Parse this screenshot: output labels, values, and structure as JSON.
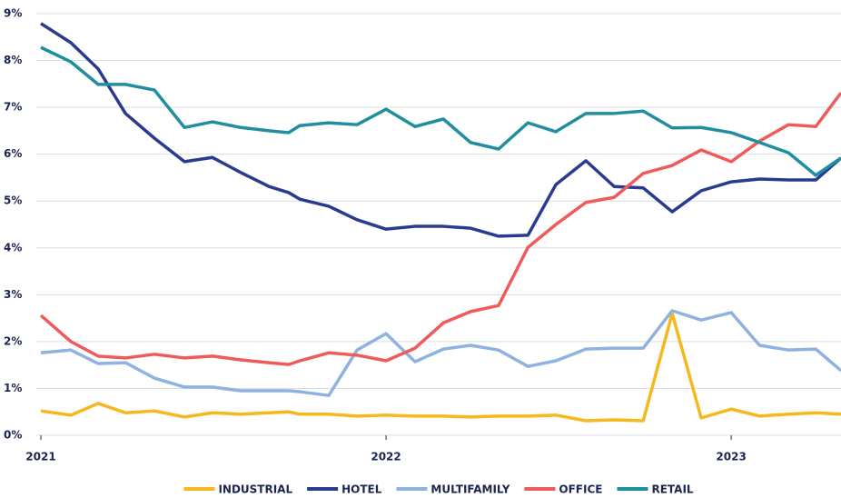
{
  "chart_data": {
    "type": "line",
    "x": [
      2021.0,
      2021.087,
      2021.166,
      2021.245,
      2021.329,
      2021.416,
      2021.497,
      2021.579,
      2021.661,
      2021.718,
      2021.75,
      2021.834,
      2021.916,
      2022.0,
      2022.084,
      2022.166,
      2022.245,
      2022.326,
      2022.411,
      2022.492,
      2022.579,
      2022.661,
      2022.745,
      2022.829,
      2022.913,
      2023.0,
      2023.082,
      2023.166,
      2023.245,
      2023.318
    ],
    "series": [
      {
        "name": "INDUSTRIAL",
        "color": "#f5b81e",
        "values": [
          0.52,
          0.43,
          0.68,
          0.48,
          0.52,
          0.39,
          0.48,
          0.45,
          0.48,
          0.5,
          0.45,
          0.45,
          0.41,
          0.43,
          0.41,
          0.41,
          0.39,
          0.41,
          0.41,
          0.43,
          0.31,
          0.33,
          0.31,
          2.6,
          0.37,
          0.56,
          0.41,
          0.45,
          0.48,
          0.45
        ]
      },
      {
        "name": "HOTEL",
        "color": "#2a3b8f",
        "values": [
          8.79,
          8.38,
          7.82,
          6.87,
          6.34,
          5.84,
          5.93,
          5.61,
          5.31,
          5.18,
          5.04,
          4.89,
          4.6,
          4.4,
          4.46,
          4.46,
          4.42,
          4.25,
          4.27,
          5.35,
          5.86,
          5.31,
          5.28,
          4.77,
          5.22,
          5.41,
          5.47,
          5.45,
          5.45,
          5.92
        ]
      },
      {
        "name": "MULTIFAMILY",
        "color": "#8fb3e0",
        "values": [
          1.76,
          1.82,
          1.53,
          1.55,
          1.22,
          1.03,
          1.03,
          0.95,
          0.95,
          0.95,
          0.93,
          0.85,
          1.82,
          2.17,
          1.57,
          1.84,
          1.92,
          1.82,
          1.47,
          1.59,
          1.84,
          1.86,
          1.86,
          2.66,
          2.46,
          2.62,
          1.92,
          1.82,
          1.84,
          1.38
        ]
      },
      {
        "name": "OFFICE",
        "color": "#ef5b5b",
        "values": [
          2.56,
          2.0,
          1.69,
          1.65,
          1.73,
          1.65,
          1.69,
          1.61,
          1.55,
          1.51,
          1.59,
          1.76,
          1.71,
          1.59,
          1.86,
          2.4,
          2.64,
          2.77,
          4.01,
          4.5,
          4.97,
          5.08,
          5.59,
          5.76,
          6.09,
          5.84,
          6.28,
          6.63,
          6.59,
          7.31
        ]
      },
      {
        "name": "RETAIL",
        "color": "#1f8fa0",
        "values": [
          8.28,
          7.97,
          7.49,
          7.49,
          7.37,
          6.57,
          6.69,
          6.57,
          6.5,
          6.46,
          6.61,
          6.67,
          6.63,
          6.96,
          6.59,
          6.75,
          6.25,
          6.11,
          6.67,
          6.48,
          6.87,
          6.87,
          6.92,
          6.56,
          6.57,
          6.46,
          6.25,
          6.03,
          5.55,
          5.92
        ]
      }
    ],
    "xlim": [
      2021,
      2023.318
    ],
    "xticks": [
      2021,
      2022,
      2023
    ],
    "ylim": [
      0,
      9
    ],
    "yticks": [
      {
        "value": 0,
        "label": "0%"
      },
      {
        "value": 1,
        "label": "1%"
      },
      {
        "value": 2,
        "label": "2%"
      },
      {
        "value": 3,
        "label": "3%"
      },
      {
        "value": 4,
        "label": "4%"
      },
      {
        "value": 5,
        "label": "5%"
      },
      {
        "value": 6,
        "label": "6%"
      },
      {
        "value": 7,
        "label": "7%"
      },
      {
        "value": 8,
        "label": "8%"
      },
      {
        "value": 9,
        "label": "9%"
      }
    ],
    "grid": true,
    "legend": "bottom"
  }
}
